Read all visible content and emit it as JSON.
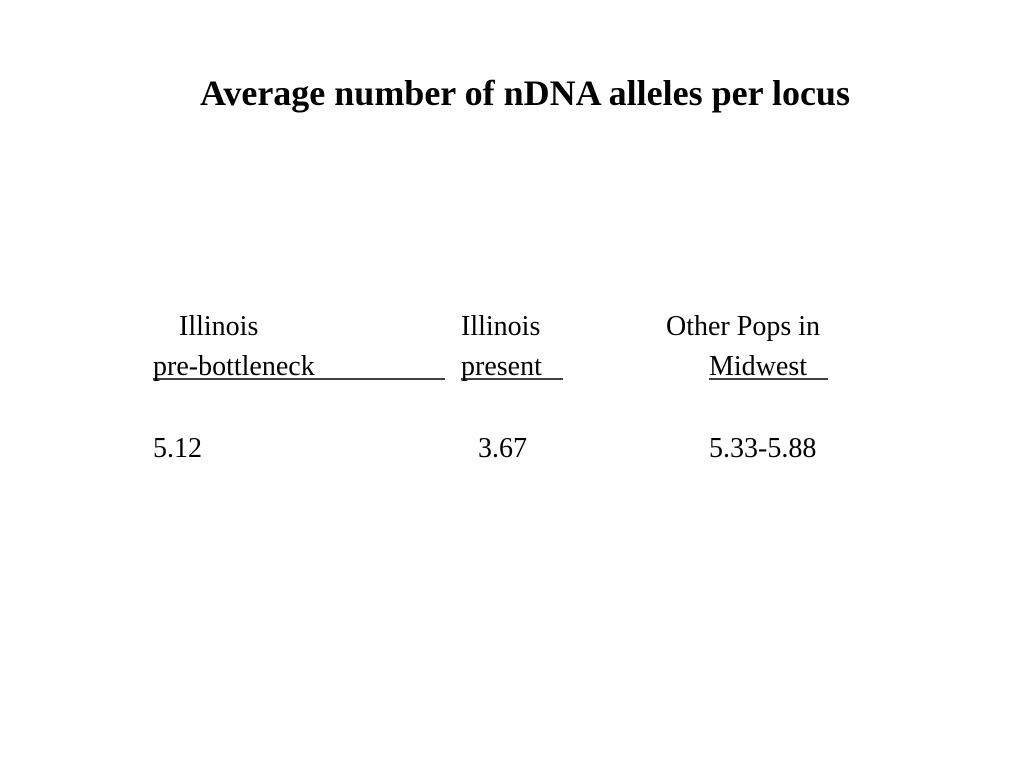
{
  "title": "Average number of nDNA alleles per locus",
  "columns": [
    {
      "header": [
        "Illinois",
        "pre-bottleneck"
      ],
      "value": 5.12
    },
    {
      "header": [
        "Illinois",
        "present"
      ],
      "value": 3.67
    },
    {
      "header": [
        "Other Pops in",
        "Midwest"
      ],
      "value": "5.33-5.88"
    }
  ]
}
